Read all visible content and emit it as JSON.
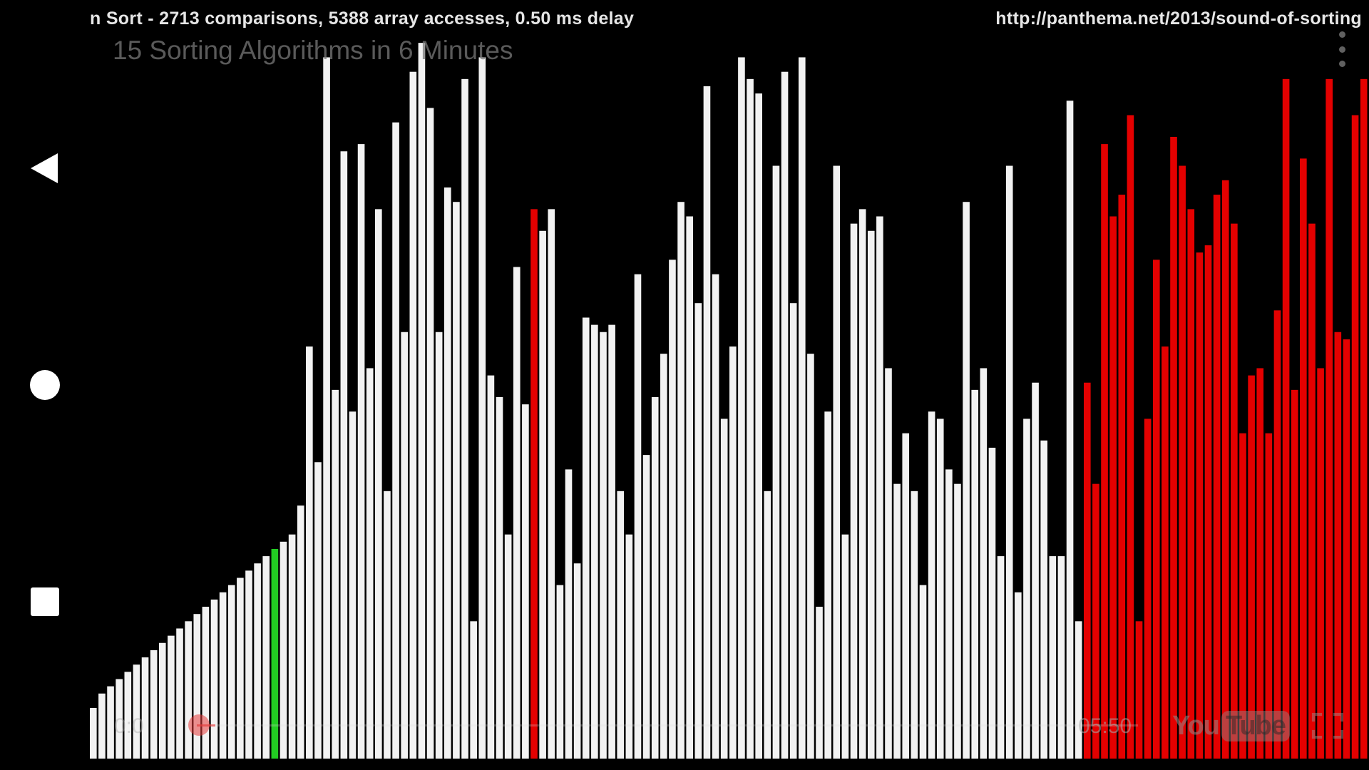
{
  "nav": {
    "back": "back-icon",
    "home": "home-icon",
    "recents": "recents-icon"
  },
  "video": {
    "stats_text": "n Sort - 2713 comparisons, 5388 array accesses, 0.50 ms delay",
    "source_url": "http://panthema.net/2013/sound-of-sorting",
    "title": "15 Sorting Algorithms in 6 Minutes",
    "elapsed_time": "0:0",
    "duration": "05:50",
    "progress": 0.02,
    "logo_you": "You",
    "logo_tube": "Tube"
  },
  "colors": {
    "background": "#000000",
    "bar_default": "#f2f2f2",
    "bar_highlight": "#e40000",
    "bar_marker_green": "#22cc22"
  },
  "chart_data": {
    "type": "bar",
    "ylim": [
      0,
      100
    ],
    "values": [
      7,
      9,
      10,
      11,
      12,
      13,
      14,
      15,
      16,
      17,
      18,
      19,
      20,
      21,
      22,
      23,
      24,
      25,
      26,
      27,
      28,
      29,
      30,
      31,
      35,
      57,
      41,
      97,
      51,
      84,
      48,
      85,
      54,
      76,
      37,
      88,
      59,
      95,
      99,
      90,
      59,
      79,
      77,
      94,
      19,
      97,
      53,
      50,
      31,
      68,
      49,
      76,
      73,
      76,
      24,
      40,
      27,
      61,
      60,
      59,
      60,
      37,
      31,
      67,
      42,
      50,
      56,
      69,
      77,
      75,
      63,
      93,
      67,
      47,
      57,
      97,
      94,
      92,
      37,
      82,
      95,
      63,
      97,
      56,
      21,
      48,
      82,
      31,
      74,
      76,
      73,
      75,
      54,
      38,
      45,
      37,
      24,
      48,
      47,
      40,
      38,
      77,
      51,
      54,
      43,
      28,
      82,
      23,
      47,
      52,
      44,
      28,
      28,
      91,
      19,
      52,
      38,
      85,
      75,
      78,
      89,
      19,
      47,
      69,
      57,
      86,
      82,
      76,
      70,
      71,
      78,
      80,
      74,
      45,
      53,
      54,
      45,
      62,
      94,
      51,
      83,
      74,
      54,
      94,
      59,
      58,
      89,
      94
    ],
    "highlight_ranges": [
      [
        115,
        148
      ]
    ],
    "red_marker_indices": [
      51
    ],
    "green_marker_indices": [
      21
    ]
  }
}
